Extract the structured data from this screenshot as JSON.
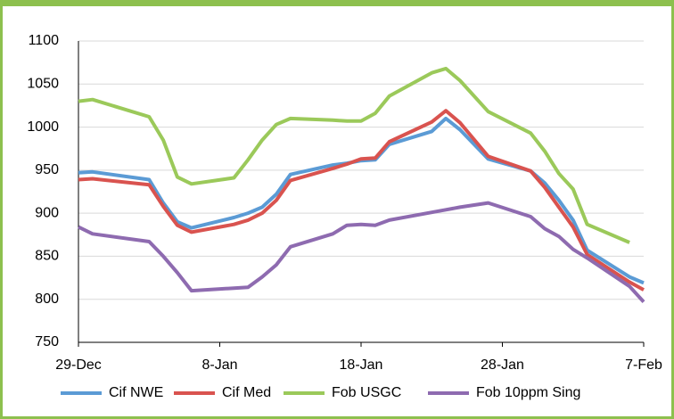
{
  "chart_data": {
    "type": "line",
    "x": [
      "29-Dec",
      "30-Dec",
      "3-Jan",
      "4-Jan",
      "5-Jan",
      "6-Jan",
      "9-Jan",
      "10-Jan",
      "11-Jan",
      "12-Jan",
      "13-Jan",
      "16-Jan",
      "17-Jan",
      "18-Jan",
      "19-Jan",
      "20-Jan",
      "23-Jan",
      "24-Jan",
      "25-Jan",
      "27-Jan",
      "30-Jan",
      "31-Jan",
      "1-Feb",
      "2-Feb",
      "3-Feb",
      "6-Feb",
      "7-Feb"
    ],
    "series": [
      {
        "name": "Cif NWE",
        "color": "#5b9bd5",
        "values": [
          947,
          948,
          939,
          912,
          890,
          883,
          895,
          900,
          907,
          922,
          945,
          956,
          958,
          961,
          962,
          980,
          995,
          1010,
          997,
          963,
          949,
          935,
          915,
          892,
          857,
          826,
          819
        ]
      },
      {
        "name": "Cif Med",
        "color": "#d9534f",
        "values": [
          939,
          940,
          933,
          908,
          886,
          878,
          887,
          892,
          900,
          915,
          938,
          952,
          957,
          963,
          964,
          983,
          1006,
          1019,
          1005,
          966,
          949,
          930,
          907,
          884,
          852,
          820,
          811
        ]
      },
      {
        "name": "Fob USGC",
        "color": "#9bc95a",
        "values": [
          1030,
          1032,
          1012,
          985,
          942,
          934,
          941,
          962,
          985,
          1003,
          1010,
          1008,
          1007,
          1007,
          1016,
          1036,
          1063,
          1068,
          1054,
          1018,
          993,
          972,
          946,
          928,
          887,
          866,
          null
        ]
      },
      {
        "name": "Fob 10ppm Sing",
        "color": "#8e6bb0",
        "values": [
          884,
          876,
          867,
          850,
          831,
          810,
          813,
          814,
          826,
          840,
          861,
          876,
          886,
          887,
          886,
          892,
          901,
          904,
          907,
          912,
          896,
          882,
          873,
          858,
          848,
          815,
          797
        ]
      }
    ],
    "xlim": [
      "29-Dec",
      "7-Feb"
    ],
    "xticks": [
      "29-Dec",
      "8-Jan",
      "18-Jan",
      "28-Jan",
      "7-Feb"
    ],
    "ylim": [
      750,
      1100
    ],
    "yticks": [
      750,
      800,
      850,
      900,
      950,
      1000,
      1050,
      1100
    ],
    "grid": true,
    "legend": "bottom"
  }
}
